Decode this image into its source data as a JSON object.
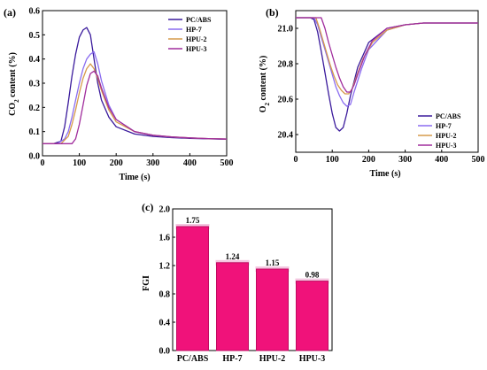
{
  "chart_data": [
    {
      "panel": "(a)",
      "type": "line",
      "xlabel": "Time (s)",
      "ylabel": "CO2 content (%)",
      "ylabel_main": "CO",
      "ylabel_sub": "2",
      "ylabel_rest": " content (%)",
      "xlim": [
        0,
        500
      ],
      "ylim": [
        0.0,
        0.6
      ],
      "xticks": [
        0,
        100,
        200,
        300,
        400,
        500
      ],
      "yticks": [
        0.0,
        0.1,
        0.2,
        0.3,
        0.4,
        0.5,
        0.6
      ],
      "ytick_labels": [
        "0.0",
        "0.1",
        "0.2",
        "0.3",
        "0.4",
        "0.5",
        "0.6"
      ],
      "legend_position": "top-right",
      "series": [
        {
          "name": "PC/ABS",
          "color": "#3a1a9c",
          "x": [
            0,
            30,
            50,
            60,
            70,
            80,
            90,
            100,
            110,
            120,
            130,
            140,
            150,
            160,
            180,
            200,
            250,
            300,
            350,
            400,
            450,
            500
          ],
          "y": [
            0.05,
            0.05,
            0.06,
            0.12,
            0.22,
            0.33,
            0.42,
            0.49,
            0.52,
            0.53,
            0.5,
            0.4,
            0.3,
            0.23,
            0.16,
            0.12,
            0.09,
            0.08,
            0.075,
            0.072,
            0.07,
            0.068
          ]
        },
        {
          "name": "HP-7",
          "color": "#8a6cf0",
          "x": [
            0,
            40,
            60,
            70,
            80,
            90,
            100,
            110,
            120,
            130,
            140,
            150,
            160,
            180,
            200,
            250,
            300,
            350,
            400,
            450,
            500
          ],
          "y": [
            0.05,
            0.05,
            0.07,
            0.1,
            0.16,
            0.23,
            0.3,
            0.36,
            0.4,
            0.42,
            0.43,
            0.38,
            0.31,
            0.21,
            0.15,
            0.1,
            0.085,
            0.078,
            0.074,
            0.071,
            0.069
          ]
        },
        {
          "name": "HPU-2",
          "color": "#d69a4a",
          "x": [
            0,
            50,
            70,
            80,
            90,
            100,
            110,
            120,
            130,
            140,
            150,
            160,
            180,
            200,
            250,
            300,
            350,
            400,
            450,
            500
          ],
          "y": [
            0.05,
            0.05,
            0.08,
            0.13,
            0.19,
            0.26,
            0.32,
            0.36,
            0.38,
            0.36,
            0.32,
            0.27,
            0.19,
            0.14,
            0.1,
            0.085,
            0.078,
            0.074,
            0.071,
            0.069
          ]
        },
        {
          "name": "HPU-3",
          "color": "#a02c9c",
          "x": [
            0,
            80,
            90,
            100,
            110,
            120,
            130,
            140,
            150,
            160,
            180,
            200,
            250,
            300,
            350,
            400,
            450,
            500
          ],
          "y": [
            0.05,
            0.05,
            0.07,
            0.13,
            0.21,
            0.29,
            0.34,
            0.35,
            0.33,
            0.28,
            0.2,
            0.15,
            0.1,
            0.085,
            0.078,
            0.074,
            0.071,
            0.069
          ]
        }
      ]
    },
    {
      "panel": "(b)",
      "type": "line",
      "xlabel": "Time (s)",
      "ylabel": "O2 content (%)",
      "ylabel_main": "O",
      "ylabel_sub": "2",
      "ylabel_rest": " content (%)",
      "xlim": [
        0,
        500
      ],
      "ylim": [
        20.3,
        21.1
      ],
      "xticks": [
        0,
        100,
        200,
        300,
        400,
        500
      ],
      "yticks": [
        20.4,
        20.6,
        20.8,
        21.0
      ],
      "ytick_labels": [
        "20.4",
        "20.6",
        "20.8",
        "21.0"
      ],
      "legend_position": "bottom-right",
      "series": [
        {
          "name": "PC/ABS",
          "color": "#3a1a9c",
          "x": [
            0,
            40,
            50,
            60,
            70,
            80,
            90,
            100,
            110,
            120,
            130,
            140,
            150,
            170,
            200,
            250,
            300,
            350,
            400,
            450,
            500
          ],
          "y": [
            21.06,
            21.06,
            21.05,
            20.98,
            20.87,
            20.75,
            20.63,
            20.52,
            20.44,
            20.42,
            20.44,
            20.52,
            20.62,
            20.78,
            20.92,
            21.0,
            21.02,
            21.03,
            21.03,
            21.03,
            21.03
          ]
        },
        {
          "name": "HP-7",
          "color": "#8a6cf0",
          "x": [
            0,
            50,
            60,
            70,
            80,
            90,
            100,
            110,
            120,
            130,
            140,
            150,
            160,
            180,
            200,
            250,
            300,
            350,
            400,
            450,
            500
          ],
          "y": [
            21.06,
            21.06,
            21.02,
            20.95,
            20.88,
            20.81,
            20.74,
            20.67,
            20.62,
            20.58,
            20.56,
            20.57,
            20.64,
            20.77,
            20.88,
            20.99,
            21.02,
            21.03,
            21.03,
            21.03,
            21.03
          ]
        },
        {
          "name": "HPU-2",
          "color": "#d69a4a",
          "x": [
            0,
            55,
            65,
            75,
            85,
            95,
            105,
            115,
            125,
            135,
            145,
            155,
            165,
            185,
            210,
            250,
            300,
            350,
            400,
            450,
            500
          ],
          "y": [
            21.06,
            21.06,
            21.0,
            20.93,
            20.86,
            20.79,
            20.73,
            20.68,
            20.65,
            20.63,
            20.63,
            20.66,
            20.72,
            20.83,
            20.92,
            20.99,
            21.02,
            21.03,
            21.03,
            21.03,
            21.03
          ]
        },
        {
          "name": "HPU-3",
          "color": "#a02c9c",
          "x": [
            0,
            70,
            80,
            90,
            100,
            110,
            120,
            130,
            140,
            150,
            160,
            170,
            190,
            210,
            250,
            300,
            350,
            400,
            450,
            500
          ],
          "y": [
            21.06,
            21.06,
            21.0,
            20.92,
            20.85,
            20.78,
            20.72,
            20.67,
            20.64,
            20.64,
            20.68,
            20.74,
            20.85,
            20.93,
            21.0,
            21.02,
            21.03,
            21.03,
            21.03,
            21.03
          ]
        }
      ]
    },
    {
      "panel": "(c)",
      "type": "bar",
      "ylabel": "FGI",
      "ylim": [
        0.0,
        2.0
      ],
      "yticks": [
        0.0,
        0.4,
        0.8,
        1.2,
        1.6,
        2.0
      ],
      "ytick_labels": [
        "0.0",
        "0.4",
        "0.8",
        "1.2",
        "1.6",
        "2.0"
      ],
      "categories": [
        "PC/ABS",
        "HP-7",
        "HPU-2",
        "HPU-3"
      ],
      "values": [
        1.75,
        1.24,
        1.15,
        0.98
      ],
      "value_labels": [
        "1.75",
        "1.24",
        "1.15",
        "0.98"
      ],
      "bar_color": "#f0127a",
      "bar_edge_color": "#c00a60",
      "error_band_color": "#f4c6e0"
    }
  ]
}
